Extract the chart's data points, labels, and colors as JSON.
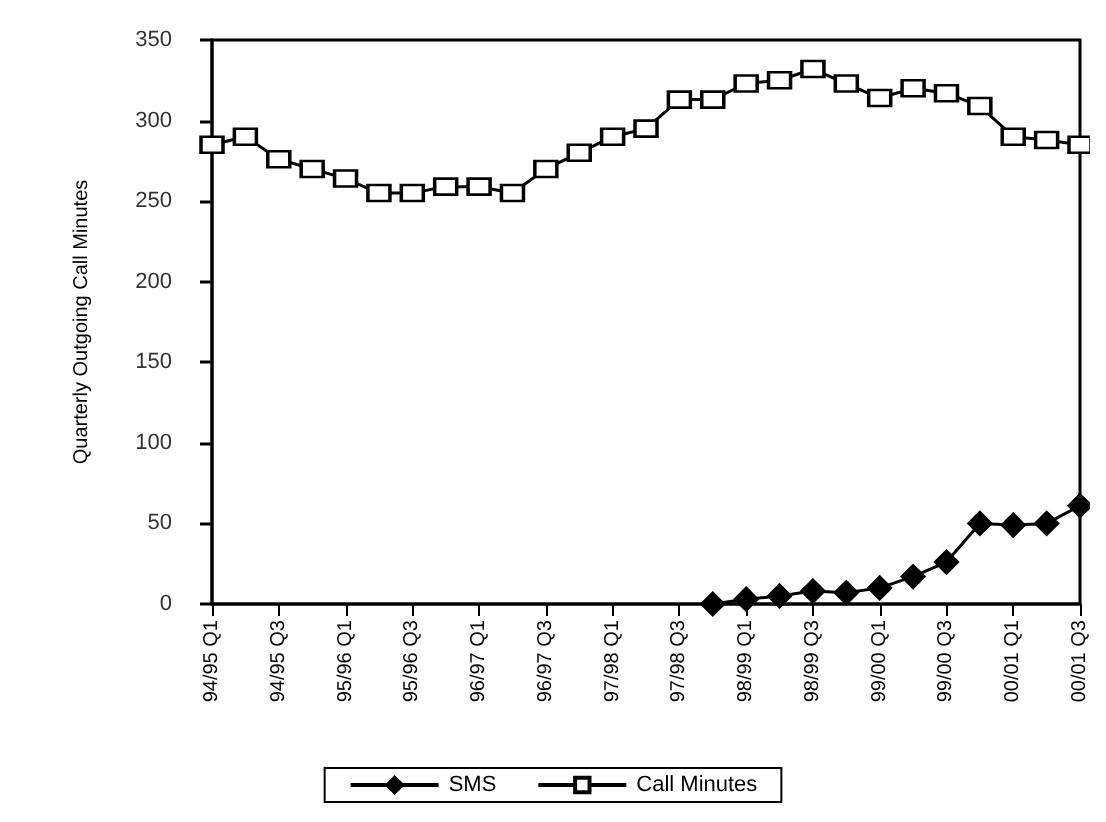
{
  "chart_data": {
    "type": "line",
    "ylabel": "Quarterly Outgoing Call Minutes",
    "categories": [
      "94/95 Q1",
      null,
      "94/95 Q3",
      null,
      "95/96 Q1",
      null,
      "95/96 Q3",
      null,
      "96/97 Q1",
      null,
      "96/97 Q3",
      null,
      "97/98 Q1",
      null,
      "97/98 Q3",
      null,
      "98/99 Q1",
      null,
      "98/99 Q3",
      null,
      "99/00 Q1",
      null,
      "99/00 Q3",
      null,
      "00/01 Q1",
      null,
      "00/01 Q3"
    ],
    "series": [
      {
        "name": "SMS",
        "color": "#000000",
        "marker": "diamond",
        "values": [
          null,
          null,
          null,
          null,
          null,
          null,
          null,
          null,
          null,
          null,
          null,
          null,
          null,
          null,
          null,
          0,
          3,
          5,
          8,
          7,
          10,
          17,
          26,
          50,
          49,
          50,
          61
        ]
      },
      {
        "name": "Call Minutes",
        "color": "#000000",
        "marker": "square",
        "values": [
          285,
          290,
          276,
          270,
          264,
          255,
          255,
          259,
          259,
          255,
          270,
          280,
          290,
          295,
          313,
          313,
          323,
          325,
          332,
          323,
          314,
          320,
          317,
          309,
          290,
          288,
          285
        ]
      }
    ],
    "ylim": [
      0,
      350
    ],
    "yticks": [
      0,
      50,
      100,
      150,
      200,
      250,
      300,
      350
    ],
    "grid": false,
    "legend": "bottom"
  }
}
